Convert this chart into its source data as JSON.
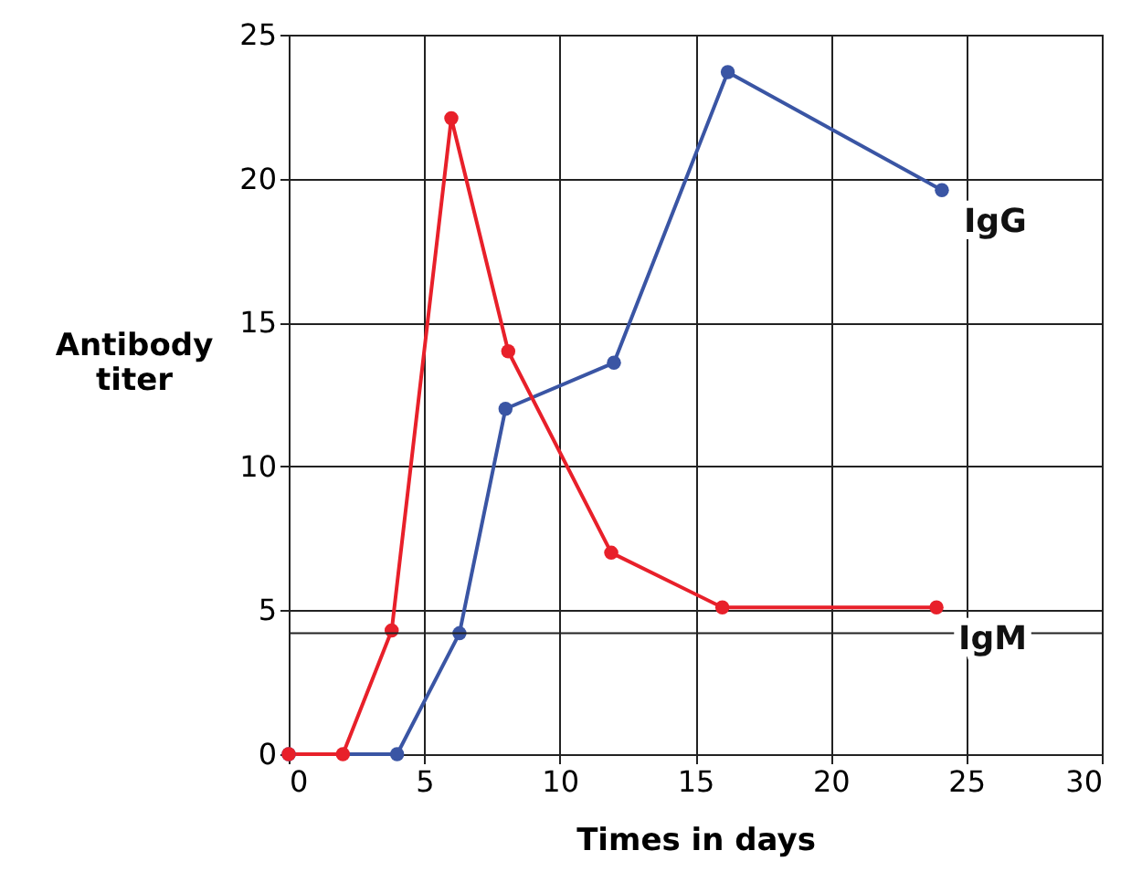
{
  "chart_data": {
    "type": "line",
    "xlabel": "Times in days",
    "ylabel": "Antibody titer",
    "xlim": [
      0,
      30
    ],
    "xticks": [
      0,
      5,
      10,
      15,
      20,
      25,
      30
    ],
    "ylim": [
      0,
      25
    ],
    "yticks": [
      0,
      5,
      10,
      15,
      20,
      25
    ],
    "grid": true,
    "marker": "circle",
    "line_style": "solid",
    "ref_lines": [
      {
        "axis": "y",
        "value": 4.2,
        "label": null
      }
    ],
    "series": [
      {
        "name": "IgG",
        "color": "#3a55a4",
        "x": [
          0,
          4,
          6.3,
          8,
          12,
          16.2,
          24.1
        ],
        "values": [
          0,
          0,
          4.2,
          12,
          13.6,
          23.7,
          19.6
        ]
      },
      {
        "name": "IgM",
        "color": "#e8202a",
        "x": [
          0,
          2,
          3.8,
          6,
          8.1,
          11.9,
          16,
          23.9
        ],
        "values": [
          0,
          0,
          4.3,
          22.1,
          14,
          7,
          5.1,
          5.1
        ]
      }
    ]
  }
}
